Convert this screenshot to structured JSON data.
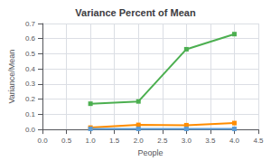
{
  "chart_data": {
    "type": "line",
    "title": "Variance Percent of Mean",
    "xlabel": "People",
    "ylabel": "Variance/Mean",
    "x": [
      1,
      2,
      3,
      4
    ],
    "series": [
      {
        "color": "#4CAF50",
        "marker": "square",
        "values": [
          0.17,
          0.185,
          0.53,
          0.63
        ]
      },
      {
        "color": "#FF8C00",
        "marker": "square",
        "values": [
          0.012,
          0.03,
          0.028,
          0.042
        ]
      },
      {
        "color": "#5B9BD5",
        "marker": "square",
        "values": [
          0.004,
          0.004,
          0.004,
          0.004
        ]
      }
    ],
    "xlim": [
      0,
      4.5
    ],
    "xticks": [
      {
        "value": 0,
        "label": "0.0"
      },
      0.5,
      {
        "value": 1,
        "label": "1.0"
      },
      1.5,
      {
        "value": 2,
        "label": "2.0"
      },
      2.5,
      {
        "value": 3,
        "label": "3.0"
      },
      3.5,
      {
        "value": 4,
        "label": "4.0"
      },
      4.5
    ],
    "ylim": [
      0,
      0.7
    ],
    "yticks": [
      {
        "value": 0,
        "label": "0.0"
      },
      0.1,
      0.2,
      0.3,
      0.4,
      0.5,
      0.6,
      0.7
    ],
    "grid": true
  }
}
